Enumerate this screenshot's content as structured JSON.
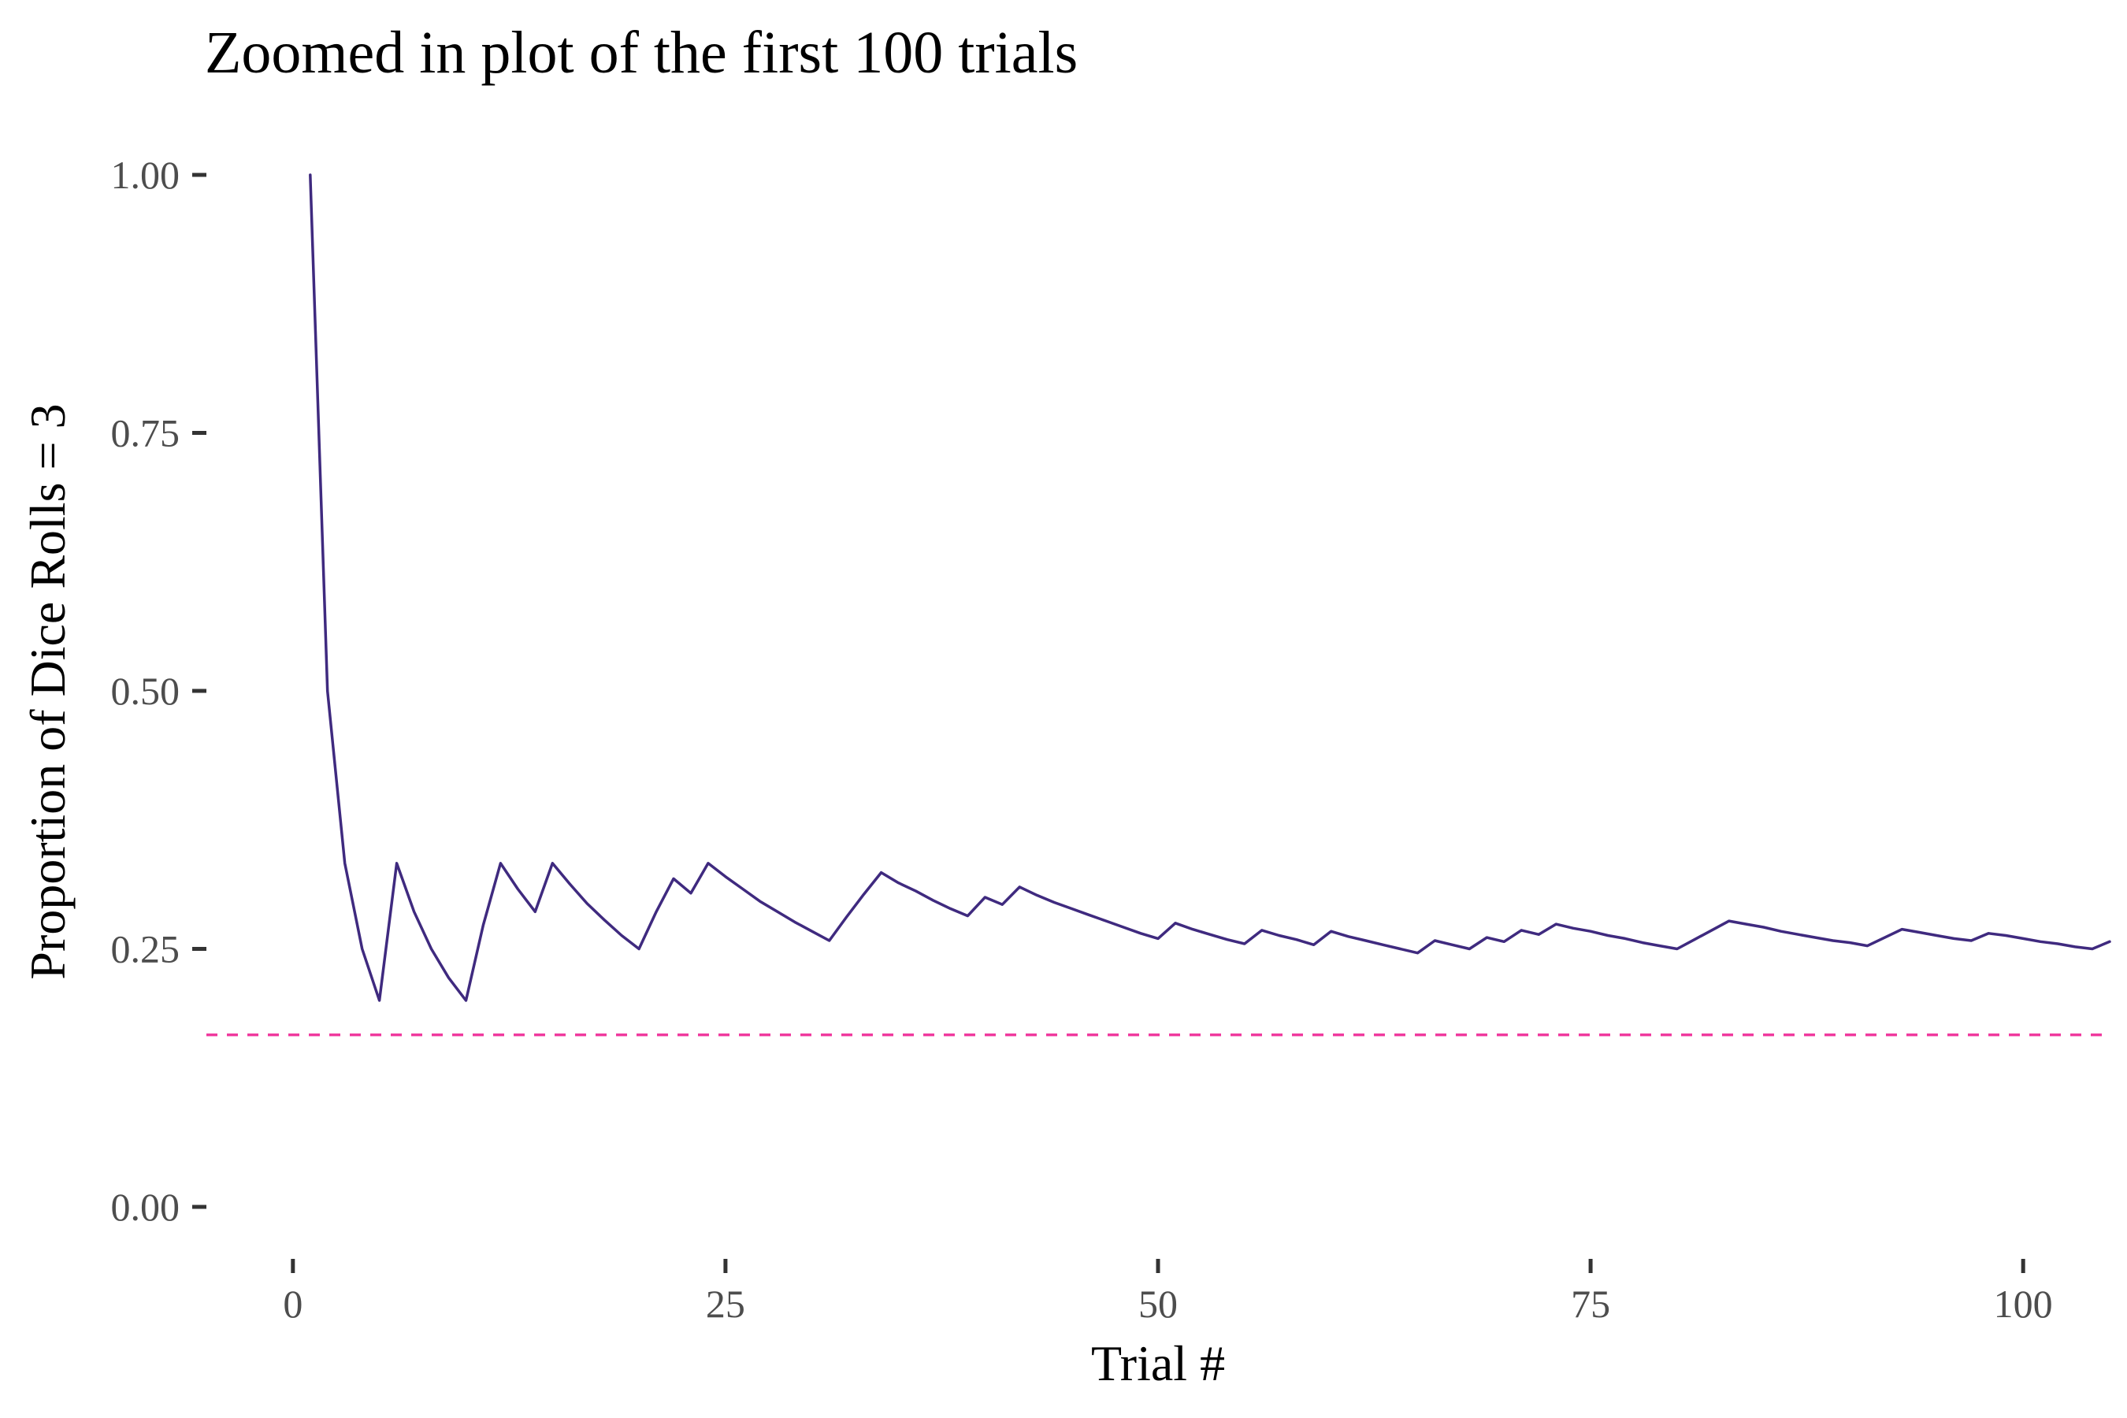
{
  "chart_data": {
    "type": "line",
    "title": "Zoomed in plot of the first 100 trials",
    "xlabel": "Trial #",
    "ylabel": "Proportion of Dice Rolls = 3",
    "xlim": [
      -5,
      105
    ],
    "ylim": [
      0,
      1
    ],
    "x_ticks": [
      0,
      25,
      50,
      75,
      100
    ],
    "x_tick_labels": [
      "0",
      "25",
      "50",
      "75",
      "100"
    ],
    "y_ticks": [
      0,
      0.25,
      0.5,
      0.75,
      1
    ],
    "y_tick_labels": [
      "0.00",
      "0.25",
      "0.50",
      "0.75",
      "1.00"
    ],
    "grid": false,
    "legend": "none",
    "series": [
      {
        "color": "#3f2a7f",
        "x": [
          1,
          2,
          3,
          4,
          5,
          6,
          7,
          8,
          9,
          10,
          11,
          12,
          13,
          14,
          15,
          16,
          17,
          18,
          19,
          20,
          21,
          22,
          23,
          24,
          25,
          26,
          27,
          28,
          29,
          30,
          31,
          32,
          33,
          34,
          35,
          36,
          37,
          38,
          39,
          40,
          41,
          42,
          43,
          44,
          45,
          46,
          47,
          48,
          49,
          50,
          51,
          52,
          53,
          54,
          55,
          56,
          57,
          58,
          59,
          60,
          61,
          62,
          63,
          64,
          65,
          66,
          67,
          68,
          69,
          70,
          71,
          72,
          73,
          74,
          75,
          76,
          77,
          78,
          79,
          80,
          81,
          82,
          83,
          84,
          85,
          86,
          87,
          88,
          89,
          90,
          91,
          92,
          93,
          94,
          95,
          96,
          97,
          98,
          99,
          100,
          101,
          102,
          103,
          104,
          105
        ],
        "y": [
          1.0,
          0.5,
          0.333,
          0.25,
          0.2,
          0.333,
          0.286,
          0.25,
          0.222,
          0.2,
          0.273,
          0.333,
          0.308,
          0.286,
          0.333,
          0.313,
          0.294,
          0.278,
          0.263,
          0.25,
          0.286,
          0.318,
          0.304,
          0.333,
          0.32,
          0.308,
          0.296,
          0.286,
          0.276,
          0.267,
          0.258,
          0.281,
          0.303,
          0.324,
          0.314,
          0.306,
          0.297,
          0.289,
          0.282,
          0.3,
          0.293,
          0.31,
          0.302,
          0.295,
          0.289,
          0.283,
          0.277,
          0.271,
          0.265,
          0.26,
          0.275,
          0.269,
          0.264,
          0.259,
          0.255,
          0.268,
          0.263,
          0.259,
          0.254,
          0.267,
          0.262,
          0.258,
          0.254,
          0.25,
          0.246,
          0.258,
          0.254,
          0.25,
          0.261,
          0.257,
          0.268,
          0.264,
          0.274,
          0.27,
          0.267,
          0.263,
          0.26,
          0.256,
          0.253,
          0.25,
          0.259,
          0.268,
          0.277,
          0.274,
          0.271,
          0.267,
          0.264,
          0.261,
          0.258,
          0.256,
          0.253,
          0.261,
          0.269,
          0.266,
          0.263,
          0.26,
          0.258,
          0.265,
          0.263,
          0.26,
          0.257,
          0.255,
          0.252,
          0.25,
          0.257
        ]
      }
    ],
    "reference_line": {
      "y": 0.1667,
      "color": "#f0399e",
      "style": "dashed"
    }
  }
}
